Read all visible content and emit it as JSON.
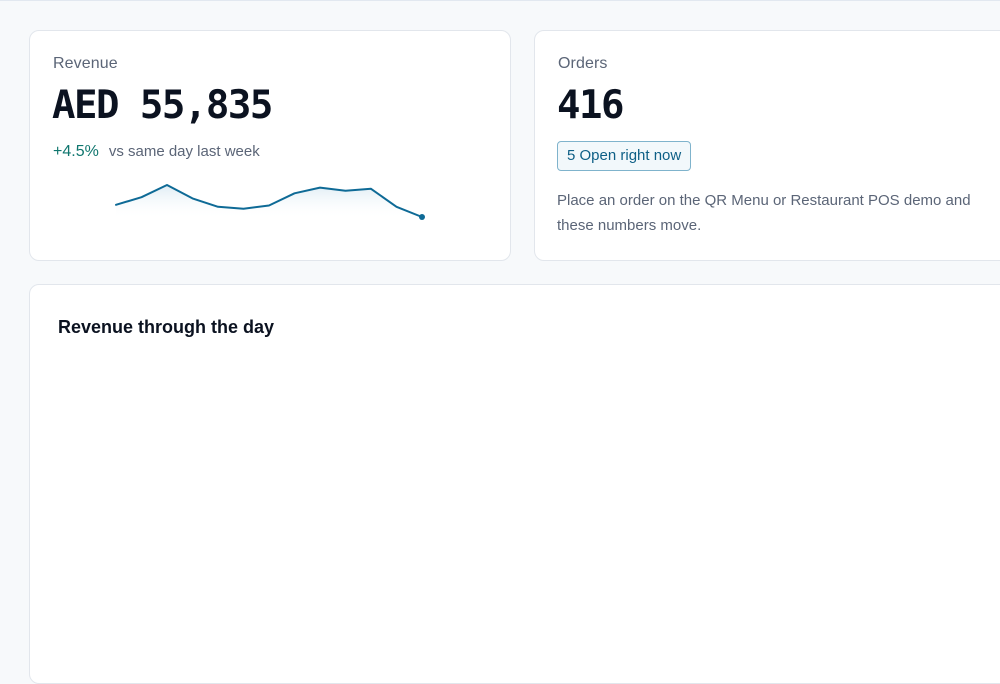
{
  "revenue_card": {
    "label": "Revenue",
    "value": "AED 55,835",
    "delta": "+4.5%",
    "delta_note": "vs same day last week",
    "delta_color": "#0f766e",
    "sparkline": {
      "line_color": "#0e6a96",
      "fill_color": "#dbeaf3",
      "values": [
        0.38,
        0.62,
        1.0,
        0.58,
        0.32,
        0.26,
        0.36,
        0.74,
        0.92,
        0.82,
        0.88,
        0.32,
        0.0
      ]
    }
  },
  "orders_card": {
    "label": "Orders",
    "value": "416",
    "open_badge": "5 Open right now",
    "note": "Place an order on the QR Menu or Restaurant POS demo and these numbers move."
  },
  "chart_section": {
    "title": "Revenue through the day"
  }
}
